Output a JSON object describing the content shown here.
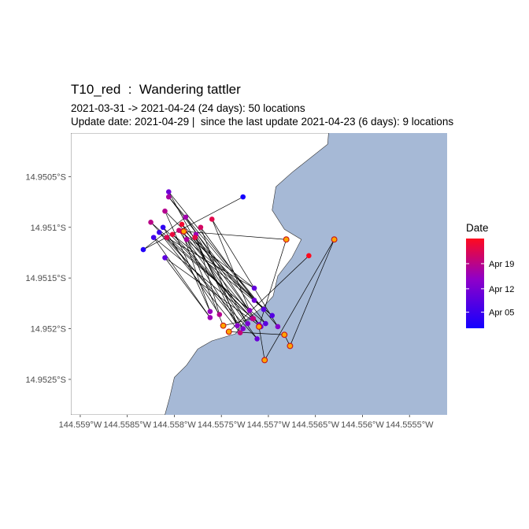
{
  "title": "T10_red  :  Wandering tattler",
  "subtitle_line1": "2021-03-31 -> 2021-04-24 (24 days): 50 locations",
  "subtitle_line2": "Update date: 2021-04-29 |  since the last update 2021-04-23 (6 days): 9 locations",
  "colors": {
    "sea": "#a6b9d6",
    "land": "#ffffff",
    "coast": "#333333",
    "track": "#000000",
    "recent_fill": "#ffa500",
    "recent_stroke": "#c81414",
    "gradient_low": "#1400ff",
    "gradient_high": "#ff0a1e"
  },
  "chart_data": {
    "type": "scatter",
    "xlim": [
      144.5591,
      144.5551
    ],
    "ylim": [
      -14.95285,
      -14.95007
    ],
    "x_ticks": [
      144.559,
      144.5585,
      144.558,
      144.5575,
      144.557,
      144.5565,
      144.556,
      144.5555
    ],
    "x_tick_labels": [
      "144.559°W",
      "144.5585°W",
      "144.558°W",
      "144.5575°W",
      "144.557°W",
      "144.5565°W",
      "144.556°W",
      "144.5555°W"
    ],
    "y_ticks": [
      -14.9505,
      -14.951,
      -14.9515,
      -14.952,
      -14.9525
    ],
    "y_tick_labels": [
      "14.9505°S",
      "14.951°S",
      "14.9515°S",
      "14.952°S",
      "14.9525°S"
    ],
    "coastline": [
      [
        144.5591,
        -14.95007
      ],
      [
        144.55636,
        -14.95007
      ],
      [
        144.55637,
        -14.95018
      ],
      [
        144.55675,
        -14.95046
      ],
      [
        144.55692,
        -14.9506
      ],
      [
        144.55696,
        -14.95083
      ],
      [
        144.55683,
        -14.95102
      ],
      [
        144.55665,
        -14.95112
      ],
      [
        144.55675,
        -14.9513
      ],
      [
        144.5569,
        -14.95148
      ],
      [
        144.55695,
        -14.95168
      ],
      [
        144.55705,
        -14.95178
      ],
      [
        144.55725,
        -14.95192
      ],
      [
        144.55735,
        -14.95205
      ],
      [
        144.5576,
        -14.95212
      ],
      [
        144.55775,
        -14.9522
      ],
      [
        144.55787,
        -14.95236
      ],
      [
        144.558,
        -14.95248
      ],
      [
        144.55805,
        -14.95268
      ],
      [
        144.5581,
        -14.95285
      ],
      [
        144.5591,
        -14.95285
      ]
    ],
    "legend": {
      "title": "Date",
      "labels": [
        "Apr 19",
        "Apr 12",
        "Apr 05"
      ],
      "label_positions": [
        0.72,
        0.44,
        0.18
      ]
    },
    "track": [
      {
        "x": 144.55727,
        "y": -14.9507,
        "t": 0.0
      },
      {
        "x": 144.55833,
        "y": -14.95122,
        "t": 0.06
      },
      {
        "x": 144.55788,
        "y": -14.9509,
        "t": 0.62
      },
      {
        "x": 144.5571,
        "y": -14.95196,
        "t": 0.44
      },
      {
        "x": 144.55792,
        "y": -14.95104,
        "t": 0.8
      },
      {
        "x": 144.55762,
        "y": -14.95183,
        "t": 0.58
      },
      {
        "x": 144.5581,
        "y": -14.95084,
        "t": 0.7
      },
      {
        "x": 144.55715,
        "y": -14.95172,
        "t": 0.4
      },
      {
        "x": 144.55772,
        "y": -14.951,
        "t": 0.82
      },
      {
        "x": 144.5573,
        "y": -14.95204,
        "t": 0.76
      },
      {
        "x": 144.55816,
        "y": -14.95105,
        "t": 0.18
      },
      {
        "x": 144.55703,
        "y": -14.95195,
        "t": 0.32
      },
      {
        "x": 144.55806,
        "y": -14.9507,
        "t": 0.65
      },
      {
        "x": 144.5569,
        "y": -14.95198,
        "t": 0.5
      },
      {
        "x": 144.5576,
        "y": -14.95092,
        "t": 0.88
      },
      {
        "x": 144.5572,
        "y": -14.95182,
        "t": 0.55
      },
      {
        "x": 144.55825,
        "y": -14.95095,
        "t": 0.72
      },
      {
        "x": 144.55712,
        "y": -14.9521,
        "t": 0.38
      },
      {
        "x": 144.55787,
        "y": -14.95112,
        "t": 0.66
      },
      {
        "x": 144.55696,
        "y": -14.95187,
        "t": 0.28
      },
      {
        "x": 144.55802,
        "y": -14.95107,
        "t": 0.92
      },
      {
        "x": 144.55717,
        "y": -14.9519,
        "t": 0.62
      },
      {
        "x": 144.55812,
        "y": -14.951,
        "t": 0.12
      },
      {
        "x": 144.55752,
        "y": -14.95186,
        "t": 0.7
      },
      {
        "x": 144.55777,
        "y": -14.95107,
        "t": 0.6
      },
      {
        "x": 144.55722,
        "y": -14.95195,
        "t": 0.45
      },
      {
        "x": 144.55792,
        "y": -14.95097,
        "t": 0.95
      },
      {
        "x": 144.55705,
        "y": -14.95181,
        "t": 0.3
      },
      {
        "x": 144.55806,
        "y": -14.95065,
        "t": 0.4
      },
      {
        "x": 144.55727,
        "y": -14.952,
        "t": 0.48
      },
      {
        "x": 144.55808,
        "y": -14.9511,
        "t": 0.86
      },
      {
        "x": 144.55715,
        "y": -14.9516,
        "t": 0.35
      },
      {
        "x": 144.55795,
        "y": -14.95103,
        "t": 0.78
      },
      {
        "x": 144.55733,
        "y": -14.95197,
        "t": 0.52
      },
      {
        "x": 144.55778,
        "y": -14.9511,
        "t": 0.9
      },
      {
        "x": 144.55708,
        "y": -14.95198,
        "t": 0.42
      },
      {
        "x": 144.5581,
        "y": -14.9513,
        "t": 0.33
      },
      {
        "x": 144.55762,
        "y": -14.95189,
        "t": 0.6
      },
      {
        "x": 144.55822,
        "y": -14.9511,
        "t": 0.2
      },
      {
        "x": 144.55716,
        "y": -14.9519,
        "t": 0.74
      },
      {
        "x": 144.55748,
        "y": -14.95197,
        "t": 0.85,
        "recent": true
      },
      {
        "x": 144.5579,
        "y": -14.95104,
        "t": 0.87,
        "recent": true
      },
      {
        "x": 144.55681,
        "y": -14.95112,
        "t": 0.88,
        "recent": true
      },
      {
        "x": 144.5571,
        "y": -14.95198,
        "t": 0.89,
        "recent": true
      },
      {
        "x": 144.55704,
        "y": -14.95231,
        "t": 0.9,
        "recent": true
      },
      {
        "x": 144.5563,
        "y": -14.95112,
        "t": 0.91,
        "recent": true
      },
      {
        "x": 144.55677,
        "y": -14.95217,
        "t": 0.92,
        "recent": true
      },
      {
        "x": 144.55683,
        "y": -14.95206,
        "t": 0.93,
        "recent": true
      },
      {
        "x": 144.55742,
        "y": -14.95203,
        "t": 0.96,
        "recent": true
      },
      {
        "x": 144.55657,
        "y": -14.95128,
        "t": 1.0
      }
    ]
  }
}
